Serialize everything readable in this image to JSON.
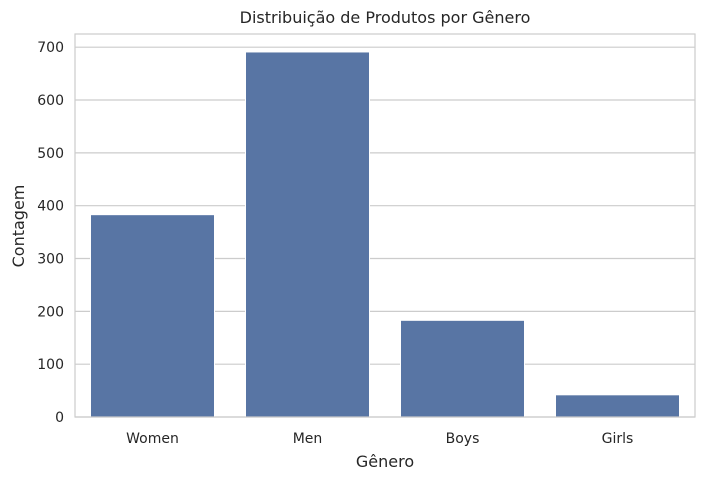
{
  "chart_data": {
    "type": "bar",
    "title": "Distribuição de Produtos por Gênero",
    "xlabel": "Gênero",
    "ylabel": "Contagem",
    "categories": [
      "Women",
      "Men",
      "Boys",
      "Girls"
    ],
    "values": [
      383,
      691,
      183,
      42
    ],
    "ylim": [
      0,
      725
    ],
    "yticks": [
      0,
      100,
      200,
      300,
      400,
      500,
      600,
      700
    ],
    "grid": true,
    "legend": "none",
    "bar_color": "#5875a4",
    "grid_color": "#cccccc"
  }
}
